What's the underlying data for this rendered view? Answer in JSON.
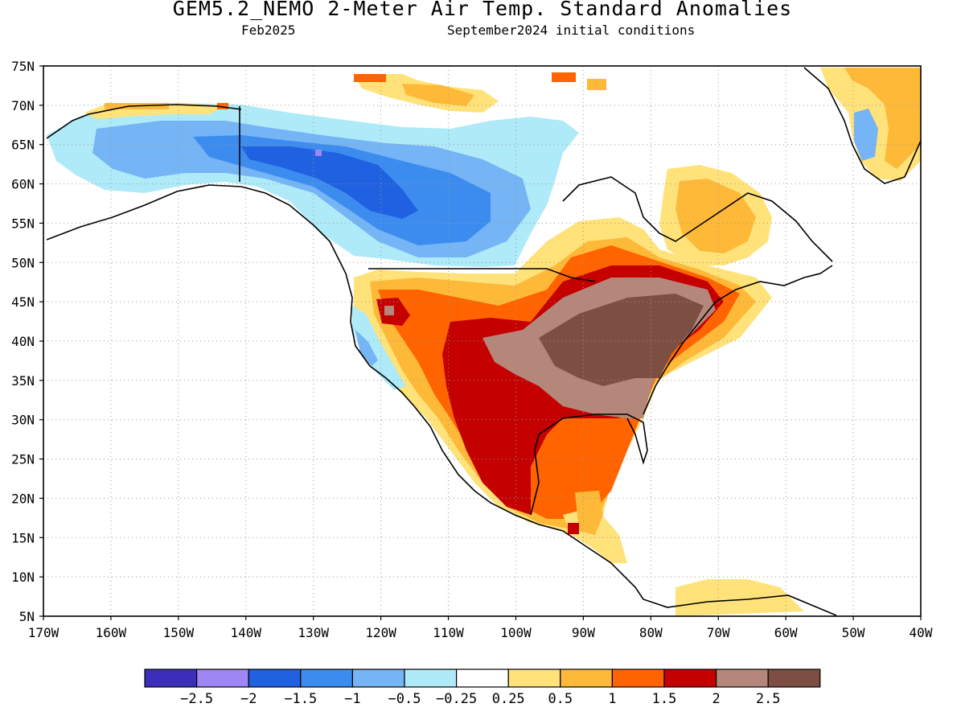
{
  "header": {
    "title": "GEM5.2_NEMO 2-Meter Air Temp. Standard Anomalies",
    "valid_month": "Feb2025",
    "init_conditions": "September2024 initial conditions"
  },
  "map": {
    "projection": "latlon",
    "lon_range": [
      -170,
      -40
    ],
    "lat_range": [
      5,
      75
    ],
    "grid": "dotted",
    "lon_labels": [
      "170W",
      "160W",
      "150W",
      "140W",
      "130W",
      "120W",
      "110W",
      "100W",
      "90W",
      "80W",
      "70W",
      "60W",
      "50W",
      "40W"
    ],
    "lat_labels": [
      "5N",
      "10N",
      "15N",
      "20N",
      "25N",
      "30N",
      "35N",
      "40N",
      "45N",
      "50N",
      "55N",
      "60N",
      "65N",
      "70N",
      "75N"
    ],
    "land_outline_color": "#000000",
    "anomaly_regions": [
      {
        "level": "cold_-1.5",
        "desc": "northwest Canada / Yukon cold core"
      },
      {
        "level": "cold_-1",
        "desc": "western and central Canada"
      },
      {
        "level": "cold_-0.5",
        "desc": "Alaska and Canadian Arctic"
      },
      {
        "level": "warm_2.5",
        "desc": "eastern United States"
      },
      {
        "level": "warm_2",
        "desc": "Mexico, Texas, Great Lakes region"
      },
      {
        "level": "warm_1",
        "desc": "Quebec, Labrador, southeast Greenland"
      }
    ]
  },
  "colorbar": {
    "colors": [
      "#3b2fba",
      "#9f86f5",
      "#1f61e0",
      "#3c8cf0",
      "#75b4f5",
      "#aeeaf7",
      "#ffffff",
      "#ffe27a",
      "#ffb938",
      "#ff6400",
      "#c40000",
      "#b5877a",
      "#7d4e42"
    ],
    "tick_labels": [
      "−2.5",
      "−2",
      "−1.5",
      "−1",
      "−0.5",
      "−0.25",
      "0.25",
      "0.5",
      "1",
      "1.5",
      "2",
      "2.5"
    ]
  }
}
